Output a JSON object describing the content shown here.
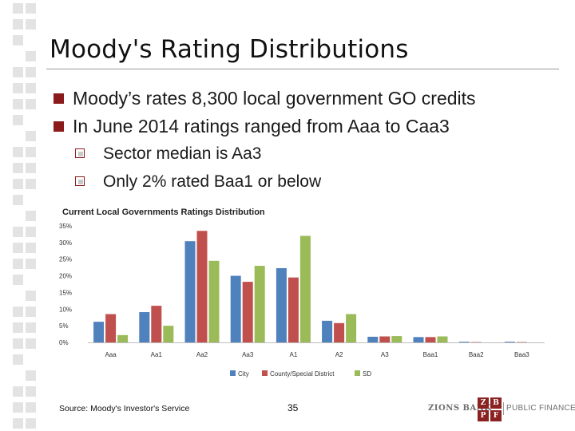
{
  "slide": {
    "title": "Moody's Rating Distributions",
    "bullets": [
      "Moody’s rates 8,300 local government GO credits",
      "In June 2014 ratings ranged from Aaa to Caa3"
    ],
    "sub_bullets": [
      "Sector median is Aa3",
      "Only 2% rated Baa1 or below"
    ],
    "source": "Source: Moody's Investor's Service",
    "page_number": "35",
    "logo": {
      "bank": "ZIONS BANK",
      "mono": [
        "Z",
        "B",
        "P",
        "F"
      ],
      "division": "PUBLIC FINANCE"
    }
  },
  "chart_data": {
    "type": "bar",
    "title": "Current Local Governments Ratings Distribution",
    "categories": [
      "Aaa",
      "Aa1",
      "Aa2",
      "Aa3",
      "A1",
      "A2",
      "A3",
      "Baa1",
      "Baa2",
      "Baa3"
    ],
    "series": [
      {
        "name": "City",
        "color": "#4f81bd",
        "values": [
          6.2,
          9.1,
          30.4,
          20.0,
          22.3,
          6.5,
          1.7,
          1.6,
          0.2,
          0.2
        ]
      },
      {
        "name": "County/Special District",
        "color": "#c0504d",
        "values": [
          8.5,
          11.0,
          33.5,
          18.2,
          19.5,
          5.8,
          1.8,
          1.6,
          0.1,
          0.1
        ]
      },
      {
        "name": "SD",
        "color": "#9bbb59",
        "values": [
          2.2,
          5.0,
          24.5,
          23.0,
          32.0,
          8.5,
          1.9,
          1.8,
          0.0,
          0.0
        ]
      }
    ],
    "ytick_labels": [
      "0%",
      "5%",
      "10%",
      "15%",
      "20%",
      "25%",
      "30%",
      "35%"
    ],
    "ylim": [
      0,
      35
    ],
    "xlabel": "",
    "ylabel": "",
    "grid": false,
    "legend_position": "bottom"
  }
}
